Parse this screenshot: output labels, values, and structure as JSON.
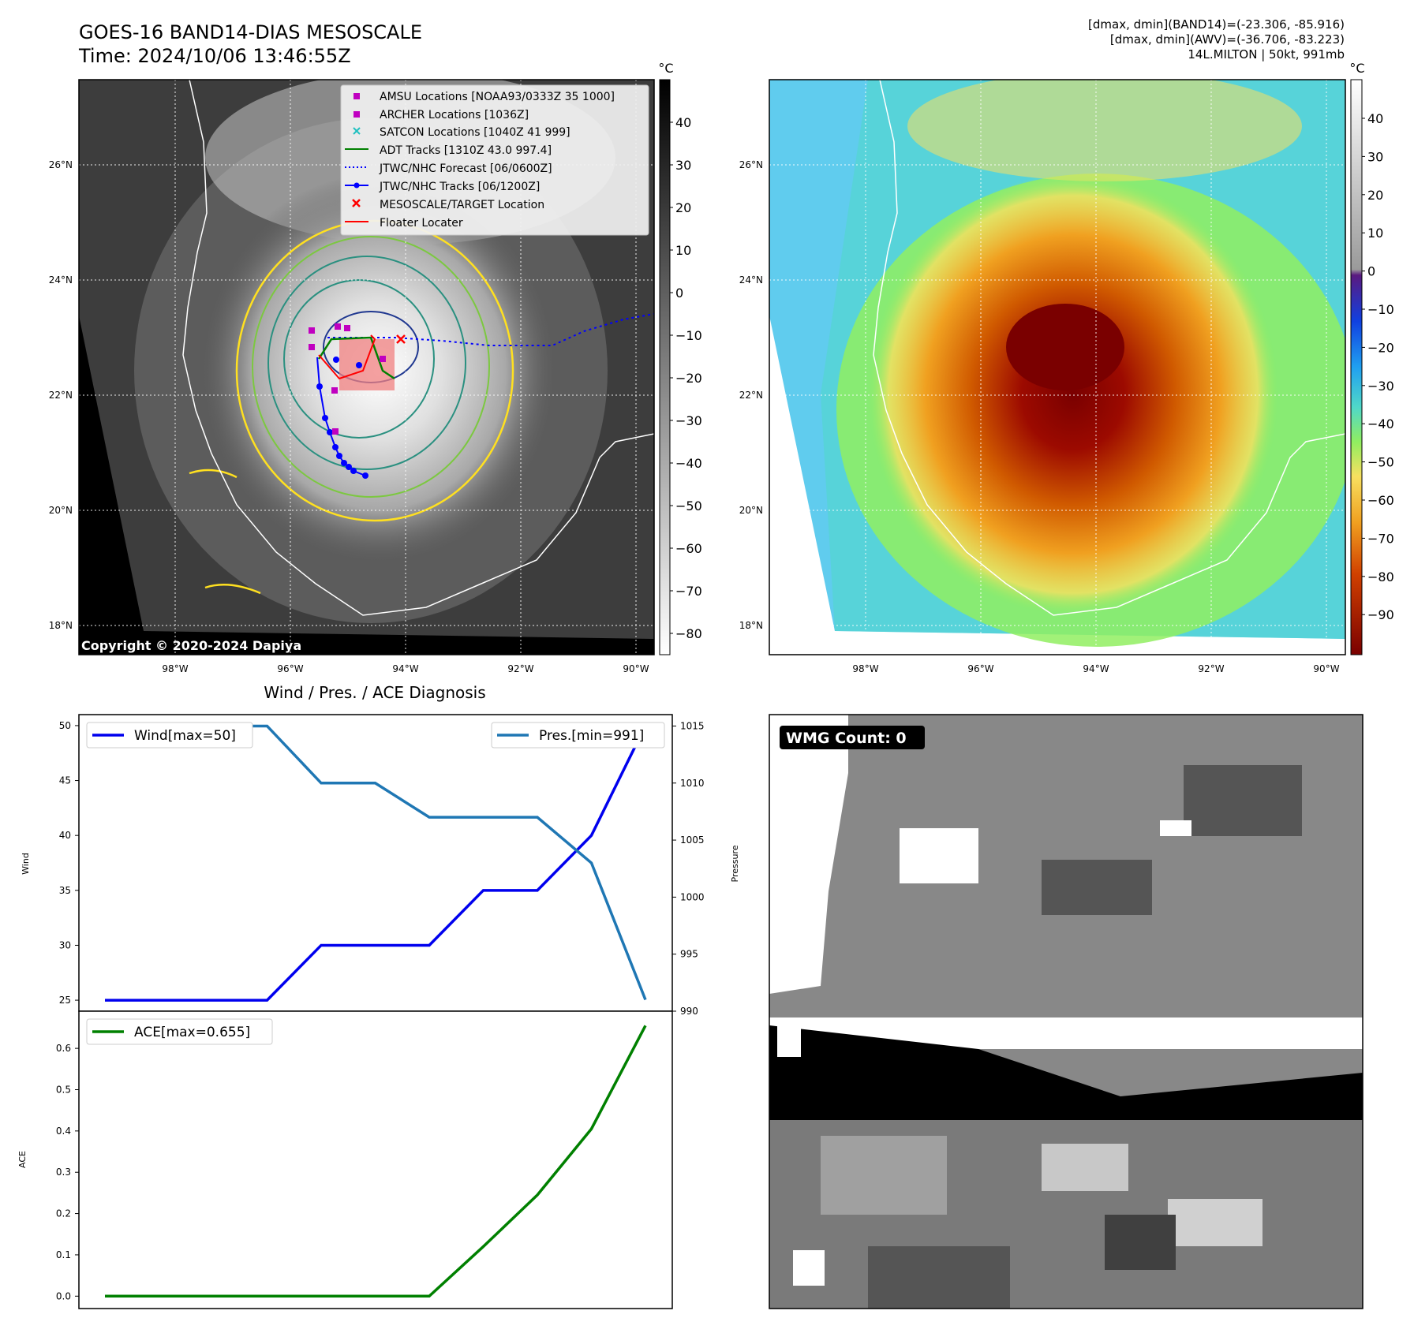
{
  "header": {
    "title_line1": "GOES-16 BAND14-DIAS MESOSCALE",
    "title_line2": "Time: 2024/10/06 13:46:55Z",
    "info_line1": "[dmax, dmin](BAND14)=(-23.306, -85.916)",
    "info_line2": "[dmax, dmin](AWV)=(-36.706, -83.223)",
    "info_line3": "14L.MILTON | 50kt, 991mb"
  },
  "copyright": "Copyright © 2020-2024 Dapiya",
  "map": {
    "lat_labels": [
      "26°N",
      "24°N",
      "22°N",
      "20°N",
      "18°N"
    ],
    "lon_labels": [
      "98°W",
      "96°W",
      "94°W",
      "92°W",
      "90°W"
    ]
  },
  "legend": {
    "amsu": "AMSU Locations [NOAA93/0333Z 35 1000]",
    "archer": "ARCHER Locations [1036Z]",
    "satcon": "SATCON Locations [1040Z 41 999]",
    "adt": "ADT Tracks [1310Z 43.0 997.4]",
    "forecast": "JTWC/NHC Forecast [06/0600Z]",
    "tracks": "JTWC/NHC Tracks [06/1200Z]",
    "target": "MESOSCALE/TARGET Location",
    "floater": "Floater Locater"
  },
  "colorbars": {
    "unit": "°C",
    "left_ticks": [
      "40",
      "30",
      "20",
      "10",
      "0",
      "−10",
      "−20",
      "−30",
      "−40",
      "−50",
      "−60",
      "−70",
      "−80"
    ],
    "right_ticks": [
      "40",
      "30",
      "20",
      "10",
      "0",
      "−10",
      "−20",
      "−30",
      "−40",
      "−50",
      "−60",
      "−70",
      "−80",
      "−90"
    ]
  },
  "wmg": {
    "label": "WMG Count: 0"
  },
  "colors": {
    "wind": "#0000ee",
    "pressure": "#1f77b4",
    "ace": "#008000",
    "track": "#0000ff",
    "target": "#ff0000"
  },
  "chart_data": [
    {
      "type": "line",
      "title": "Wind / Pres. / ACE Diagnosis",
      "xlabel": "",
      "ylabel": "Wind",
      "ylabel_right": "Pressure",
      "x": [
        0,
        1,
        2,
        3,
        4,
        5,
        6,
        7,
        8,
        9,
        10
      ],
      "series": [
        {
          "name": "Wind[max=50]",
          "axis": "left",
          "values": [
            25,
            25,
            25,
            25,
            30,
            30,
            30,
            35,
            35,
            40,
            50
          ]
        },
        {
          "name": "Pres.[min=991]",
          "axis": "right",
          "values": [
            1015,
            1015,
            1015,
            1015,
            1010,
            1010,
            1007,
            1007,
            1007,
            1003,
            991
          ]
        }
      ],
      "ylim": [
        24,
        51
      ],
      "ylim_right": [
        990,
        1016
      ],
      "yticks": [
        "50",
        "45",
        "40",
        "35",
        "30",
        "25"
      ],
      "yticks_right": [
        "1015",
        "1010",
        "1005",
        "1000",
        "995",
        "990"
      ]
    },
    {
      "type": "line",
      "ylabel": "ACE",
      "x": [
        0,
        1,
        2,
        3,
        4,
        5,
        6,
        7,
        8,
        9,
        10
      ],
      "series": [
        {
          "name": "ACE[max=0.655]",
          "axis": "left",
          "values": [
            0,
            0,
            0,
            0,
            0,
            0,
            0,
            0.12,
            0.245,
            0.405,
            0.655
          ]
        }
      ],
      "ylim": [
        -0.03,
        0.69
      ],
      "yticks": [
        "0.6",
        "0.5",
        "0.4",
        "0.3",
        "0.2",
        "0.1",
        "0.0"
      ]
    }
  ]
}
